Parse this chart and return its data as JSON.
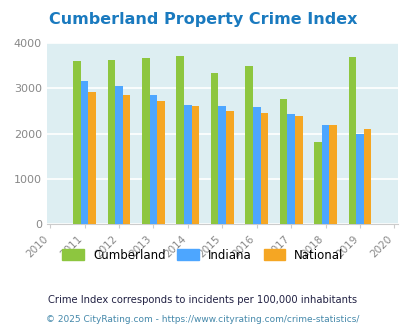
{
  "title": "Cumberland Property Crime Index",
  "data_years": [
    2011,
    2012,
    2013,
    2014,
    2015,
    2016,
    2017,
    2018,
    2019
  ],
  "all_years": [
    2010,
    2011,
    2012,
    2013,
    2014,
    2015,
    2016,
    2017,
    2018,
    2019,
    2020
  ],
  "cumberland": [
    3610,
    3620,
    3660,
    3720,
    3330,
    3500,
    2760,
    1810,
    3700
  ],
  "indiana": [
    3160,
    3040,
    2850,
    2640,
    2600,
    2590,
    2430,
    2180,
    1990
  ],
  "national": [
    2920,
    2860,
    2730,
    2610,
    2510,
    2460,
    2390,
    2180,
    2100
  ],
  "ylim": [
    0,
    4000
  ],
  "yticks": [
    0,
    1000,
    2000,
    3000,
    4000
  ],
  "color_cumberland": "#8dc63f",
  "color_indiana": "#4da6ff",
  "color_national": "#f5a623",
  "background_color": "#ddeef2",
  "fig_background": "#ffffff",
  "title_color": "#1a7abf",
  "title_fontsize": 11.5,
  "legend_labels": [
    "Cumberland",
    "Indiana",
    "National"
  ],
  "footnote1": "Crime Index corresponds to incidents per 100,000 inhabitants",
  "footnote2": "© 2025 CityRating.com - https://www.cityrating.com/crime-statistics/",
  "bar_width": 0.22,
  "grid_color": "#ffffff",
  "tick_label_color": "#888888",
  "footnote1_color": "#222244",
  "footnote2_color": "#4488aa"
}
